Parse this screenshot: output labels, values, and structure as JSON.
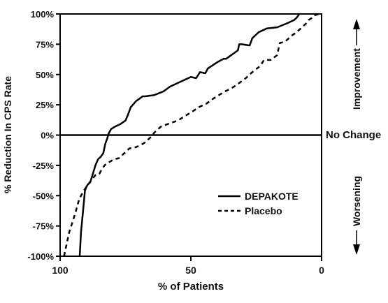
{
  "chart_data": {
    "type": "line",
    "title": "",
    "xlabel": "% of Patients",
    "ylabel": "% Reduction In CPS Rate",
    "xlim": [
      100,
      0
    ],
    "ylim": [
      -100,
      100
    ],
    "x_reversed": true,
    "grid": false,
    "legend_position": "lower-right",
    "x_ticks": [
      {
        "value": 100,
        "label": "100"
      },
      {
        "value": 50,
        "label": "50"
      },
      {
        "value": 0,
        "label": "0"
      }
    ],
    "y_ticks": [
      {
        "value": 100,
        "label": "100%"
      },
      {
        "value": 75,
        "label": "75%"
      },
      {
        "value": 50,
        "label": "50%"
      },
      {
        "value": 25,
        "label": "25%"
      },
      {
        "value": 0,
        "label": "0%"
      },
      {
        "value": -25,
        "label": "-25%"
      },
      {
        "value": -50,
        "label": "-50%"
      },
      {
        "value": -75,
        "label": "-75%"
      },
      {
        "value": -100,
        "label": "-100%"
      }
    ],
    "reference_line": {
      "y": 0,
      "label": "No Change"
    },
    "annotations": {
      "improvement": "Improvement",
      "worsening": "Worsening"
    },
    "series": [
      {
        "name": "DEPAKOTE",
        "style": "solid",
        "color": "#000000",
        "x": [
          92.5,
          92.0,
          91.2,
          90.5,
          90.0,
          89.5,
          88.5,
          87.5,
          86.5,
          85.5,
          84.5,
          83.5,
          82.7,
          82.0,
          81.5,
          80.5,
          79.0,
          77.0,
          75.0,
          74.0,
          73.0,
          71.0,
          69.0,
          68.5,
          67.5,
          64.0,
          60.5,
          58.0,
          56.0,
          53.0,
          50.0,
          48.0,
          46.5,
          44.5,
          43.5,
          40.0,
          37.5,
          36.5,
          32.0,
          31.5,
          30.5,
          27.5,
          26.5,
          24.0,
          21.0,
          17.0,
          13.5,
          10.5,
          9.5,
          8.5
        ],
        "y": [
          -100,
          -80,
          -62,
          -46,
          -43,
          -41,
          -39,
          -32,
          -25,
          -20,
          -18,
          -15,
          -7,
          -3,
          1,
          5,
          7,
          9,
          12,
          17,
          23,
          28,
          31,
          32,
          32,
          33,
          36,
          40,
          42,
          45,
          48,
          47,
          52,
          51,
          55,
          60,
          63,
          63,
          70,
          75,
          75,
          74,
          80,
          85,
          88,
          89,
          92,
          95,
          97,
          100
        ]
      },
      {
        "name": "Placebo",
        "style": "dashed",
        "color": "#000000",
        "x": [
          98.5,
          97.5,
          96.5,
          95.0,
          94.0,
          93.0,
          92.0,
          91.0,
          90.0,
          89.0,
          88.0,
          86.5,
          85.0,
          84.0,
          83.0,
          82.0,
          81.0,
          79.5,
          77.5,
          76.0,
          75.0,
          73.5,
          71.0,
          69.0,
          67.5,
          66.0,
          65.0,
          64.0,
          63.0,
          61.5,
          59.0,
          55.0,
          52.0,
          49.0,
          47.0,
          44.0,
          41.5,
          40.0,
          38.5,
          37.0,
          35.0,
          33.5,
          31.5,
          29.0,
          26.5,
          23.5,
          22.0,
          19.5,
          17.0,
          16.0,
          14.0,
          11.5,
          9.5,
          7.0,
          5.5,
          5.0,
          3.5,
          2.5,
          1.0
        ],
        "y": [
          -100,
          -90,
          -80,
          -70,
          -63,
          -55,
          -50,
          -46,
          -43,
          -40,
          -37,
          -33,
          -32,
          -28,
          -25,
          -23,
          -22,
          -20,
          -19,
          -16,
          -14,
          -11,
          -10,
          -8,
          -6,
          -3,
          -1,
          2,
          4,
          7,
          9,
          12,
          16,
          20,
          23,
          26,
          30,
          32,
          34,
          36,
          38,
          40,
          43,
          47,
          52,
          57,
          62,
          62,
          66,
          76,
          77,
          82,
          85,
          90,
          93,
          95,
          97,
          99,
          100
        ]
      }
    ]
  }
}
